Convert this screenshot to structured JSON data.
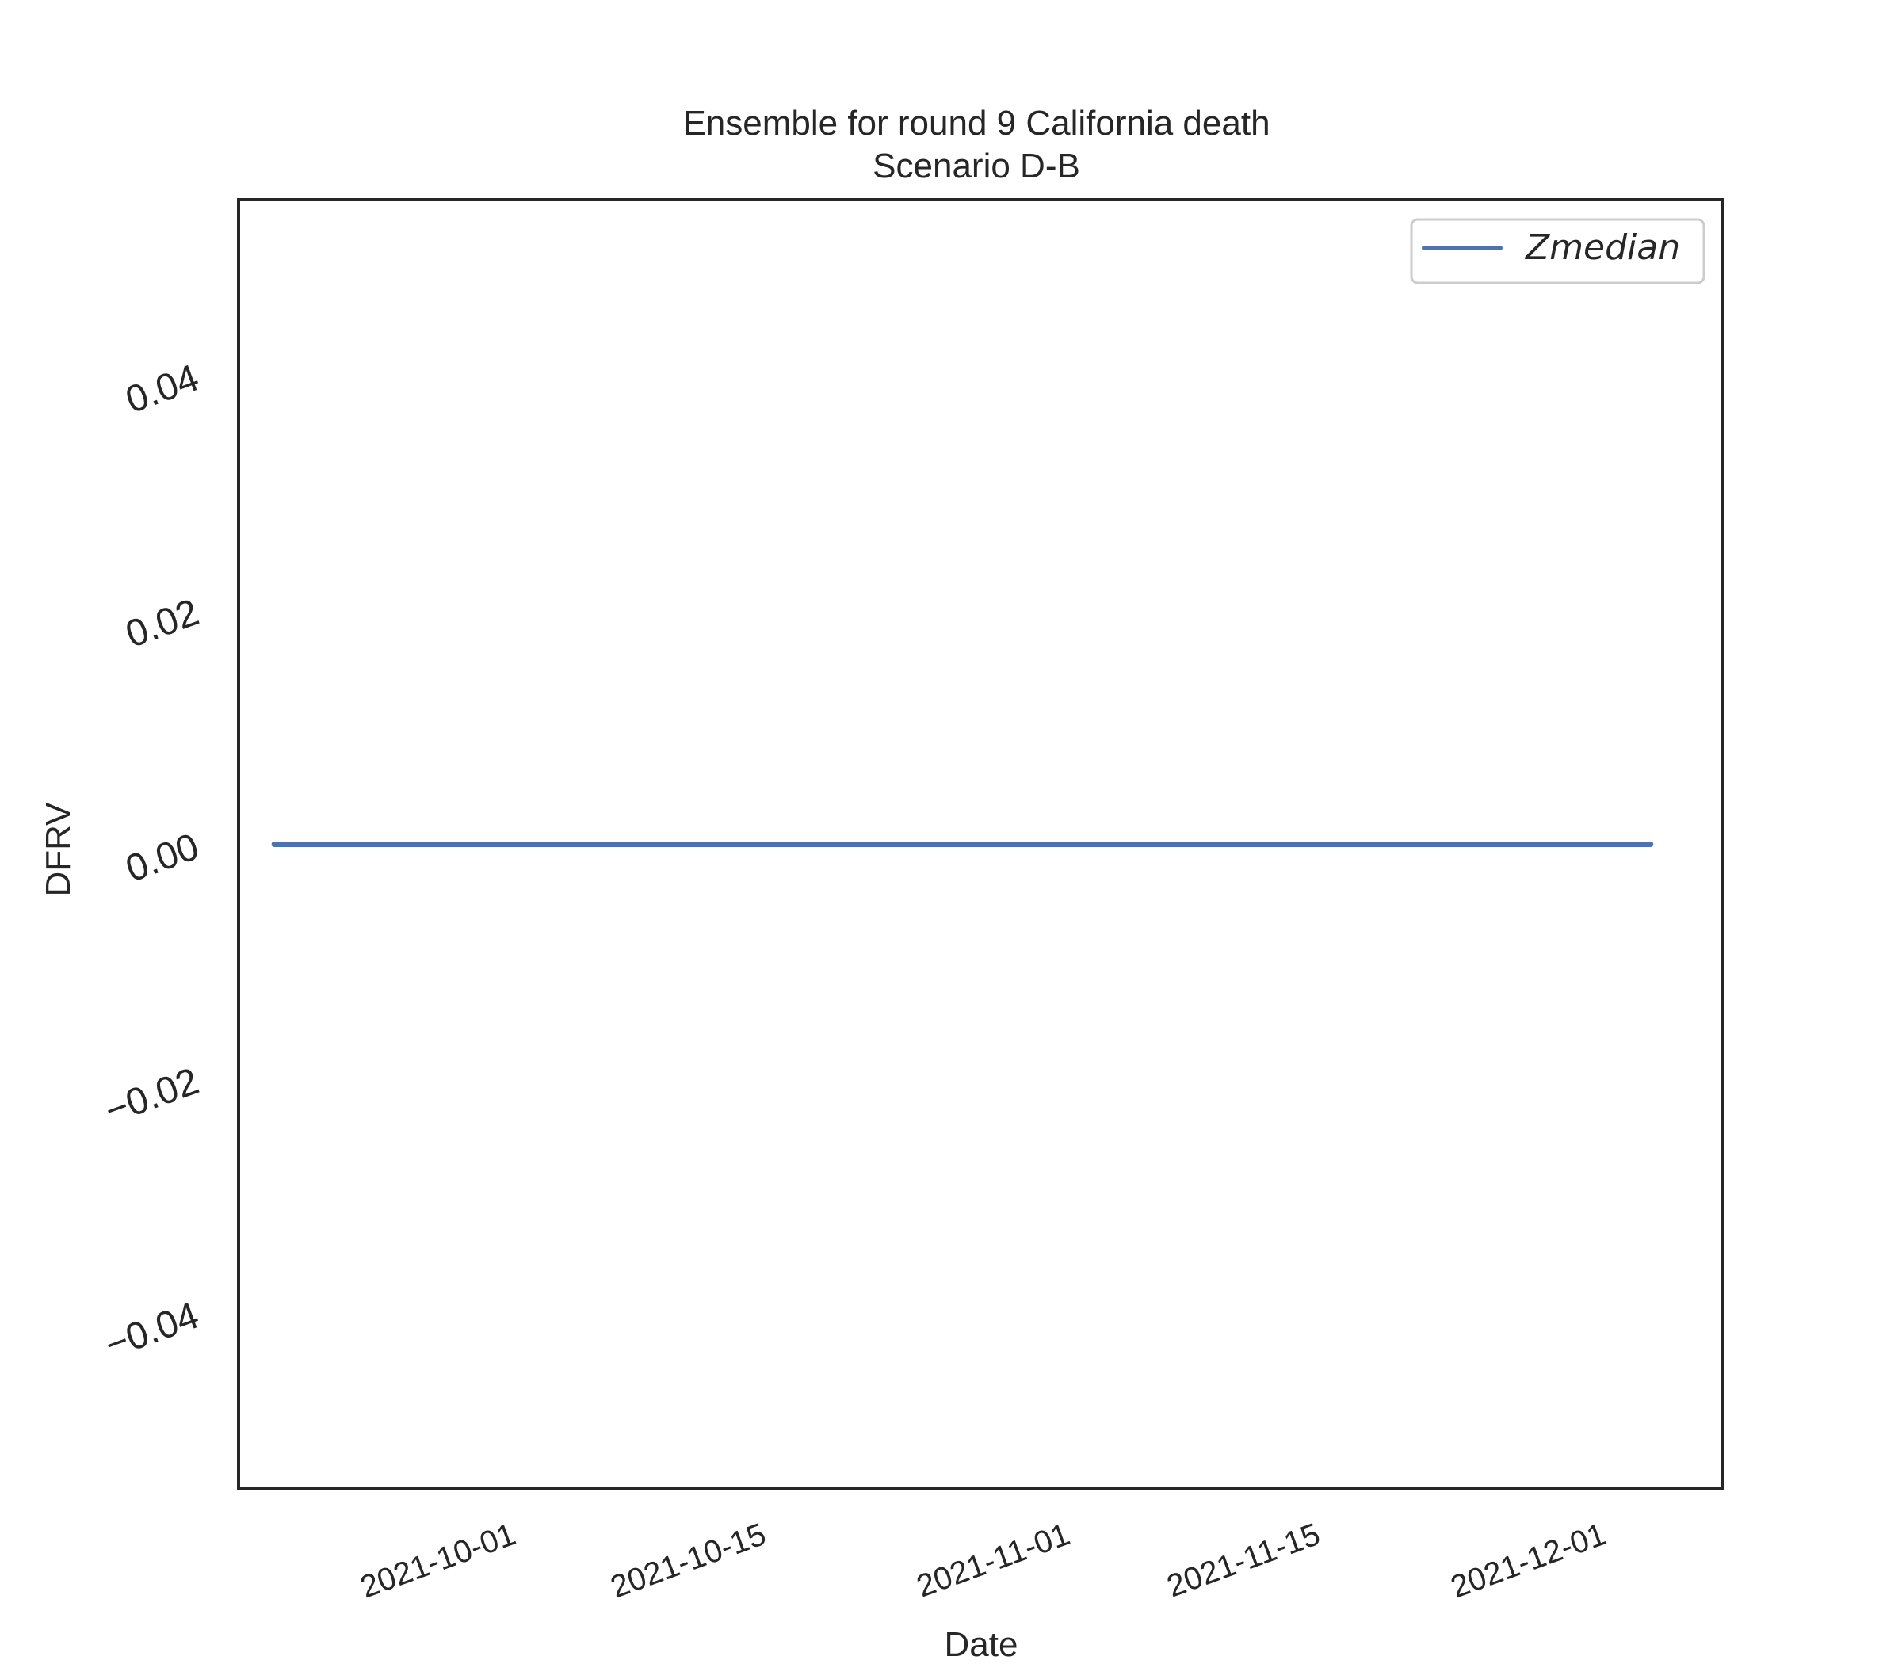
{
  "chart_data": {
    "type": "line",
    "title": "Ensemble for round 9 California death",
    "subtitle": "Scenario D-B",
    "xlabel": "Date",
    "ylabel": "DFRV",
    "x_type": "date",
    "xlim": [
      "2021-09-16",
      "2021-12-08"
    ],
    "ylim": [
      -0.055,
      0.055
    ],
    "xticks": [
      "2021-10-01",
      "2021-10-15",
      "2021-11-01",
      "2021-11-15",
      "2021-12-01"
    ],
    "yticks": [
      0.04,
      0.02,
      0.0,
      -0.02,
      -0.04
    ],
    "ytick_labels": [
      "0.04",
      "0.02",
      "0.00",
      "−0.02",
      "−0.04"
    ],
    "grid": false,
    "legend_position": "top-right",
    "series": [
      {
        "name": "Zmedian",
        "color": "#4c72b0",
        "x": [
          "2021-09-18",
          "2021-12-04"
        ],
        "y": [
          0.0,
          0.0
        ]
      }
    ]
  }
}
